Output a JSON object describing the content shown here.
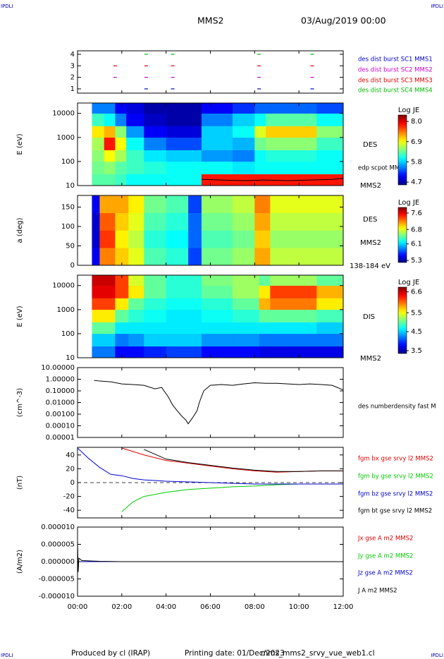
{
  "header": {
    "logo_left": "IPDLI",
    "logo_right": "IPDLI",
    "spacecraft": "MMS2",
    "date": "03/Aug/2019 00:00"
  },
  "footer": {
    "logo_left": "IPDLI",
    "logo_right": "IPDLI",
    "producer": "Produced by cl (IRAP)",
    "printing_date": "Printing date: 01/Dec/2023",
    "file": "mms_mms2_srvy_vue_web1.cl"
  },
  "chart_data": [
    {
      "type": "scatter",
      "xlim": [
        0,
        12
      ],
      "ylim": [
        0.63,
        4.3
      ],
      "yticks": [
        1,
        2,
        3,
        4
      ],
      "series": [
        {
          "name": "des dist burst SC1 MMS1",
          "color": "#0000cc",
          "x": [
            3.1,
            4.3,
            8.2,
            10.6
          ],
          "values": [
            1,
            1,
            1,
            1
          ]
        },
        {
          "name": "des dist burst SC2 MMS2",
          "color": "#cc00cc",
          "x": [
            1.7,
            3.1,
            4.3,
            8.2,
            10.6
          ],
          "values": [
            2,
            2,
            2,
            2,
            2
          ]
        },
        {
          "name": "des dist burst SC3 MMS3",
          "color": "#dd0000",
          "x": [
            1.7,
            3.1,
            4.3,
            8.2,
            10.6
          ],
          "values": [
            3,
            3,
            3,
            3,
            3
          ]
        },
        {
          "name": "des dist burst SC4 MMS4",
          "color": "#00bb00",
          "x": [
            3.1,
            4.3,
            8.2,
            10.6
          ],
          "values": [
            4,
            4,
            4,
            4
          ]
        }
      ]
    },
    {
      "type": "heatmap",
      "ylabel": "E (eV)",
      "log_y": true,
      "xlim": [
        0,
        12
      ],
      "ylim": [
        10,
        27000
      ],
      "yticks": [
        10,
        100,
        1000,
        10000
      ],
      "labels": [
        "DES",
        "MMS2"
      ],
      "colorbar_title": "Log JE",
      "zlim": [
        4.55,
        8.35
      ],
      "zticks": [
        {
          "value": 8,
          "label": "8.0"
        },
        6.9,
        5.8,
        4.7
      ],
      "x_edges": [
        0.65,
        1.2,
        1.7,
        2.2,
        3.0,
        4.0,
        5.6,
        7.0,
        8.0,
        8.5,
        10.8,
        12
      ],
      "y_edges": [
        10,
        30,
        100,
        300,
        1000,
        3000,
        10000,
        27000
      ],
      "z": [
        [
          6.3,
          6.4,
          6.5,
          6.6,
          7.0,
          6.2,
          5.5
        ],
        [
          6.3,
          6.5,
          6.9,
          7.8,
          7.2,
          6.0,
          5.5
        ],
        [
          6.2,
          6.3,
          6.6,
          6.9,
          6.5,
          5.5,
          5.0
        ],
        [
          6.0,
          6.2,
          6.2,
          6.0,
          5.6,
          5.0,
          4.9
        ],
        [
          6.0,
          6.1,
          5.9,
          5.5,
          5.0,
          4.8,
          4.7
        ],
        [
          6.0,
          6.0,
          5.8,
          5.3,
          4.9,
          4.7,
          4.7
        ],
        [
          7.8,
          6.0,
          5.6,
          5.8,
          5.8,
          5.5,
          5.0
        ],
        [
          7.8,
          5.9,
          5.5,
          5.7,
          6.0,
          5.8,
          5.2
        ],
        [
          7.8,
          6.0,
          6.0,
          6.4,
          6.8,
          6.0,
          5.4
        ],
        [
          7.8,
          6.0,
          6.1,
          6.5,
          7.1,
          6.3,
          5.4
        ],
        [
          7.8,
          6.0,
          6.0,
          6.2,
          6.5,
          6.0,
          5.3
        ]
      ],
      "lines": [
        {
          "name": "edp scpot MMS2",
          "color": "#000000",
          "x": [
            5.6,
            6.5,
            7.5,
            8.5,
            9.5,
            10.5,
            11.5,
            12
          ],
          "values": [
            18,
            17,
            16,
            17,
            16,
            17,
            18,
            20
          ]
        }
      ]
    },
    {
      "type": "heatmap",
      "ylabel": "a (deg)",
      "log_y": false,
      "xlim": [
        0,
        12
      ],
      "ylim": [
        0,
        180
      ],
      "yticks": [
        0,
        50,
        100,
        150
      ],
      "labels": [
        "DES",
        "MMS2",
        "138-184 eV"
      ],
      "colorbar_title": "Log JE",
      "zlim": [
        5.2,
        7.87
      ],
      "zticks": [
        7.6,
        6.8,
        6.1,
        5.3
      ],
      "x_edges": [
        0.65,
        1.0,
        1.7,
        2.3,
        3.0,
        4.0,
        5.0,
        5.6,
        7.0,
        8.0,
        8.7,
        12
      ],
      "y_edges": [
        0,
        45,
        90,
        135,
        180
      ],
      "z": [
        [
          5.5,
          5.4,
          5.4,
          5.5
        ],
        [
          7.2,
          7.4,
          7.3,
          7.1
        ],
        [
          7.0,
          6.9,
          7.0,
          7.1
        ],
        [
          6.8,
          6.7,
          6.8,
          6.9
        ],
        [
          6.4,
          6.3,
          6.4,
          6.5
        ],
        [
          6.3,
          6.2,
          6.3,
          6.4
        ],
        [
          5.7,
          5.8,
          5.8,
          5.7
        ],
        [
          6.5,
          6.4,
          6.5,
          6.6
        ],
        [
          6.6,
          6.5,
          6.6,
          6.7
        ],
        [
          7.1,
          7.0,
          7.1,
          7.2
        ],
        [
          6.7,
          6.6,
          6.7,
          6.8
        ]
      ]
    },
    {
      "type": "heatmap",
      "ylabel": "E (eV)",
      "log_y": true,
      "xlim": [
        0,
        12
      ],
      "ylim": [
        10,
        27000
      ],
      "yticks": [
        10,
        100,
        1000,
        10000
      ],
      "labels": [
        "DIS",
        "MMS2"
      ],
      "colorbar_title": "Log JE",
      "zlim": [
        3.35,
        6.85
      ],
      "zticks": [
        6.6,
        5.5,
        4.5,
        3.5
      ],
      "x_edges": [
        0.65,
        1.7,
        2.3,
        3.0,
        4.0,
        5.6,
        7.0,
        8.2,
        8.7,
        10.8,
        12
      ],
      "y_edges": [
        10,
        30,
        100,
        300,
        1000,
        3000,
        10000,
        27000
      ],
      "z": [
        [
          4.2,
          4.5,
          5.0,
          5.6,
          6.2,
          6.5,
          6.6
        ],
        [
          3.8,
          4.2,
          4.6,
          5.0,
          5.6,
          6.2,
          6.2
        ],
        [
          3.8,
          4.3,
          4.6,
          4.8,
          5.0,
          5.6,
          5.4
        ],
        [
          3.9,
          4.5,
          4.6,
          4.7,
          4.8,
          5.0,
          5.0
        ],
        [
          4.0,
          4.5,
          4.6,
          4.6,
          4.7,
          4.8,
          4.8
        ],
        [
          3.8,
          4.3,
          4.6,
          4.7,
          4.8,
          5.0,
          5.1
        ],
        [
          3.8,
          4.3,
          4.6,
          4.8,
          5.0,
          5.2,
          5.2
        ],
        [
          3.7,
          4.2,
          4.6,
          5.0,
          5.8,
          5.6,
          5.0
        ],
        [
          3.7,
          4.2,
          4.6,
          5.0,
          6.0,
          6.2,
          5.2
        ],
        [
          3.7,
          4.2,
          4.5,
          4.9,
          5.6,
          5.8,
          5.0
        ]
      ]
    },
    {
      "type": "line",
      "ylabel": "(cm^-3)",
      "log_y": true,
      "xlim": [
        0,
        12
      ],
      "ylim": [
        1e-05,
        10
      ],
      "yticks": [
        {
          "value": 10,
          "label": "10.00000"
        },
        {
          "value": 1,
          "label": "1.00000"
        },
        {
          "value": 0.1,
          "label": "0.10000"
        },
        {
          "value": 0.01,
          "label": "0.01000"
        },
        {
          "value": 0.001,
          "label": "0.00100"
        },
        {
          "value": 0.0001,
          "label": "0.00010"
        },
        {
          "value": 1e-05,
          "label": "0.00001"
        }
      ],
      "x": [
        0.75,
        1.0,
        1.5,
        2.0,
        2.5,
        3.0,
        3.5,
        3.8,
        4.1,
        4.3,
        4.5,
        4.7,
        4.9,
        5.0,
        5.2,
        5.4,
        5.5,
        5.7,
        6.0,
        6.5,
        7.0,
        7.5,
        8.0,
        8.5,
        9.0,
        9.5,
        10.0,
        10.5,
        11.0,
        11.5,
        12.0
      ],
      "series": [
        {
          "name": "des numberdensity fast M",
          "color": "#000000",
          "values": [
            0.8,
            0.7,
            0.6,
            0.4,
            0.35,
            0.3,
            0.15,
            0.2,
            0.03,
            0.006,
            0.002,
            0.0007,
            0.0003,
            0.00015,
            0.0005,
            0.002,
            0.01,
            0.1,
            0.3,
            0.35,
            0.3,
            0.4,
            0.5,
            0.45,
            0.45,
            0.4,
            0.35,
            0.4,
            0.35,
            0.3,
            0.12
          ]
        }
      ]
    },
    {
      "type": "line",
      "ylabel": "(nT)",
      "log_y": false,
      "zero_line": true,
      "xlim": [
        0,
        12
      ],
      "ylim": [
        -51,
        51
      ],
      "yticks": [
        -40,
        -20,
        0,
        20,
        40
      ],
      "x": [
        0,
        0.5,
        1,
        1.5,
        2,
        2.5,
        3,
        4,
        5,
        6,
        7,
        8,
        9,
        10,
        11,
        12
      ],
      "series": [
        {
          "name": "fgm bx gse srvy l2 MMS2",
          "color": "#dd0000",
          "values": [
            null,
            null,
            null,
            null,
            50,
            45,
            40,
            32,
            28,
            24,
            20,
            17,
            15,
            16,
            17,
            17
          ]
        },
        {
          "name": "fgm by gse srvy l2 MMS2",
          "color": "#00cc00",
          "values": [
            null,
            null,
            null,
            null,
            -42,
            -28,
            -20,
            -14,
            -10,
            -8,
            -6,
            -5,
            -3,
            -2,
            -2,
            -2
          ]
        },
        {
          "name": "fgm bz gse srvy l2 MMS2",
          "color": "#0000cc",
          "values": [
            50,
            35,
            22,
            12,
            10,
            6,
            4,
            2,
            1,
            0,
            -1,
            -2,
            -2,
            -2,
            -2,
            -2
          ]
        },
        {
          "name": "fgm bt gse srvy l2 MMS2",
          "color": "#000000",
          "values": [
            null,
            null,
            null,
            null,
            null,
            null,
            48,
            34,
            29,
            25,
            21,
            18,
            16,
            16,
            17,
            17
          ]
        }
      ]
    },
    {
      "type": "line",
      "ylabel": "(A/m2)",
      "log_y": false,
      "xlim": [
        0,
        12
      ],
      "ylim": [
        -1e-05,
        1e-05
      ],
      "yticks": [
        {
          "value": 1e-05,
          "label": "0.000010"
        },
        {
          "value": 5e-06,
          "label": "0.000005"
        },
        {
          "value": 0,
          "label": "0.000000"
        },
        {
          "value": -5e-06,
          "label": "-0.000005"
        },
        {
          "value": -1e-05,
          "label": "-0.000010"
        }
      ],
      "xticks": [
        {
          "value": 0,
          "label": "00:00"
        },
        {
          "value": 2,
          "label": "02:00"
        },
        {
          "value": 4,
          "label": "04:00"
        },
        {
          "value": 6,
          "label": "06:00"
        },
        {
          "value": 8,
          "label": "08:00"
        },
        {
          "value": 10,
          "label": "10:00"
        },
        {
          "value": 12,
          "label": "12:00"
        }
      ],
      "x": [
        0,
        0.03,
        0.06,
        0.2,
        1,
        2,
        4,
        6,
        8,
        10,
        12
      ],
      "series": [
        {
          "name": "Jx gse A m2 MMS2",
          "color": "#dd0000",
          "values": [
            0,
            0,
            0,
            0,
            0,
            0,
            0,
            0,
            0,
            0,
            0
          ]
        },
        {
          "name": "Jy gse A m2 MMS2",
          "color": "#00cc00",
          "values": [
            0,
            0,
            0,
            0,
            0,
            0,
            0,
            0,
            0,
            0,
            0
          ]
        },
        {
          "name": "Jz gse A m2 MMS2",
          "color": "#0000cc",
          "values": [
            0,
            0,
            0,
            0,
            0,
            0,
            0,
            0,
            0,
            0,
            0
          ]
        },
        {
          "name": "J A m2 MMS2",
          "color": "#000000",
          "values": [
            6e-06,
            -3e-06,
            1e-06,
            3e-07,
            1e-07,
            0,
            0,
            0,
            0,
            0,
            0
          ]
        }
      ]
    }
  ]
}
